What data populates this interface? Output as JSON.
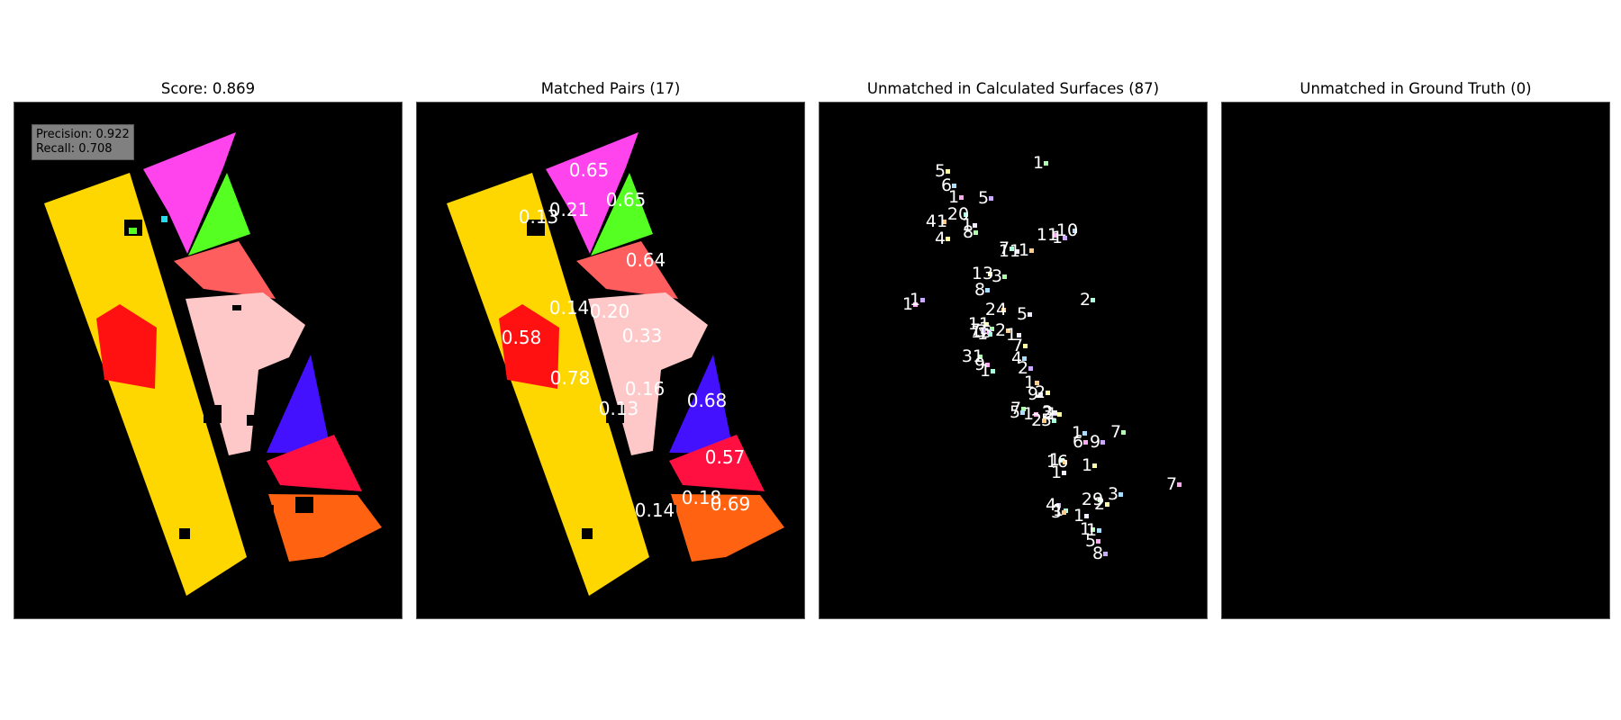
{
  "panels": [
    {
      "title": "Score: 0.869"
    },
    {
      "title": "Matched Pairs (17)"
    },
    {
      "title": "Unmatched in Calculated Surfaces (87)"
    },
    {
      "title": "Unmatched in Ground Truth (0)"
    }
  ],
  "metrics": {
    "precision": "Precision: 0.922",
    "recall": "Recall: 0.708"
  },
  "colors": {
    "yellow": "#FFD700",
    "magenta": "#FF44EE",
    "green": "#55FF22",
    "salmon": "#FF5E5E",
    "pink": "#FFC8C8",
    "red": "#FF1111",
    "blue": "#4411FF",
    "crimson": "#FF1040",
    "orange": "#FF6210"
  },
  "matched_labels": [
    "0.65",
    "0.65",
    "0.21",
    "0.13",
    "0.64",
    "0.14",
    "0.20",
    "0.58",
    "0.33",
    "0.78",
    "0.16",
    "0.68",
    "0.13",
    "0.57",
    "0.18",
    "0.69",
    "0.14"
  ],
  "unmatched_labels": [
    "5",
    "1",
    "6",
    "1",
    "5",
    "20",
    "41",
    "1",
    "4",
    "8",
    "10",
    "11",
    "1",
    "7",
    "1",
    "11",
    "13",
    "3",
    "8",
    "1",
    "1",
    "2",
    "24",
    "5",
    "11",
    "1",
    "3",
    "15",
    "7",
    "1",
    "2",
    "1",
    "7",
    "31",
    "4",
    "9",
    "2",
    "1",
    "1",
    "9",
    "2",
    "7",
    "5",
    "1",
    "2",
    "5",
    "2",
    "3",
    "1",
    "7",
    "1",
    "6",
    "9",
    "1",
    "16",
    "1",
    "1",
    "29",
    "3",
    "7",
    "4",
    "1",
    "3",
    "1",
    "2",
    "1",
    "1",
    "5",
    "8"
  ]
}
